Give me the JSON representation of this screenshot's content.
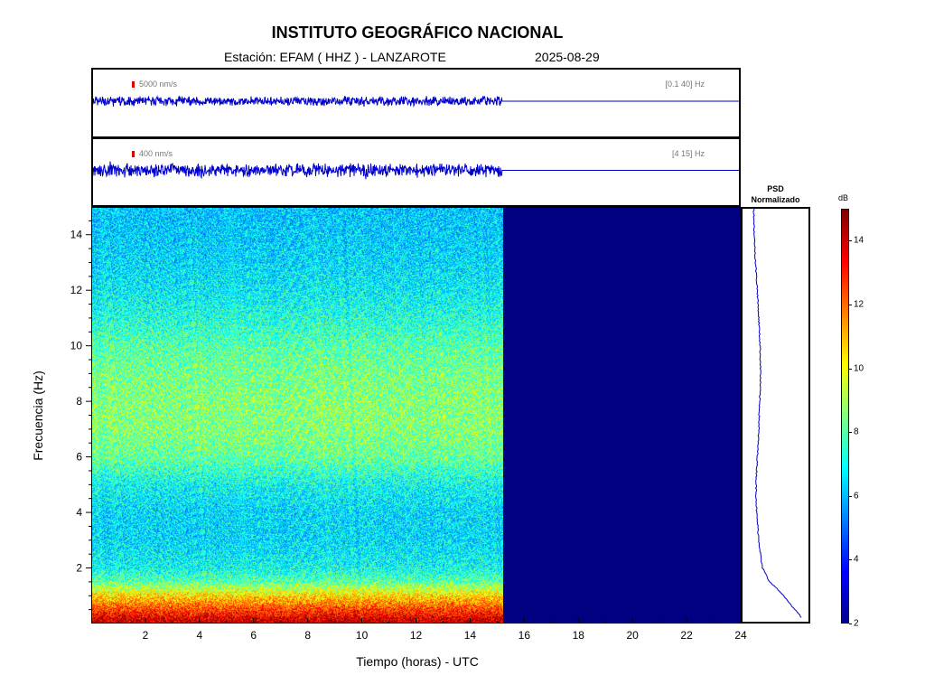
{
  "header": {
    "title": "INSTITUTO GEOGRÁFICO NACIONAL",
    "station": "Estación:  EFAM ( HHZ ) - LANZAROTE",
    "date": "2025-08-29"
  },
  "traces": [
    {
      "scale_label": "5000 nm/s",
      "band_label": "[0.1 40] Hz",
      "data_end_hour": 15.2
    },
    {
      "scale_label": "400 nm/s",
      "band_label": "[4 15] Hz",
      "data_end_hour": 15.2
    }
  ],
  "psd": {
    "title_line1": "PSD",
    "title_line2": "Normalizado"
  },
  "colorbar": {
    "unit": "dB",
    "range": [
      2,
      15
    ],
    "ticks": [
      "2",
      "4",
      "6",
      "8",
      "10",
      "12",
      "14"
    ]
  },
  "colors": {
    "trace": "#0000cc",
    "no_data": "#000080",
    "scale_bar": "#e00000"
  },
  "chart_data": {
    "type": "heatmap",
    "xlabel": "Tiempo (horas) - UTC",
    "ylabel": "Frecuencia  (Hz)",
    "xlim": [
      0,
      24
    ],
    "ylim": [
      0,
      15
    ],
    "x_ticks": [
      "2",
      "4",
      "6",
      "8",
      "10",
      "12",
      "14",
      "16",
      "18",
      "20",
      "22",
      "24"
    ],
    "y_ticks": [
      "2",
      "4",
      "6",
      "8",
      "10",
      "12",
      "14"
    ],
    "data_end_hour": 15.2,
    "psd_profile": {
      "frequency": [
        0.1,
        0.5,
        1,
        1.5,
        2,
        3,
        4,
        5,
        6,
        7,
        8,
        9,
        10,
        11,
        12,
        13,
        14,
        15
      ],
      "db": [
        14.5,
        12.5,
        10,
        7,
        5.5,
        4.8,
        4.3,
        4.2,
        4.5,
        4.8,
        5,
        5.2,
        5.1,
        4.8,
        4.5,
        4.1,
        3.8,
        3.7
      ]
    },
    "spectrogram_db_by_frequency": {
      "frequency": [
        0.1,
        0.5,
        1,
        1.5,
        2,
        3,
        4,
        5,
        6,
        7,
        8,
        9,
        10,
        11,
        12,
        13,
        14,
        15
      ],
      "db": [
        14,
        12.5,
        10.5,
        8,
        7,
        6.5,
        6.5,
        7,
        8.2,
        8.6,
        8.6,
        8.4,
        8,
        7.3,
        6.8,
        6.5,
        6.3,
        6.2
      ]
    }
  }
}
